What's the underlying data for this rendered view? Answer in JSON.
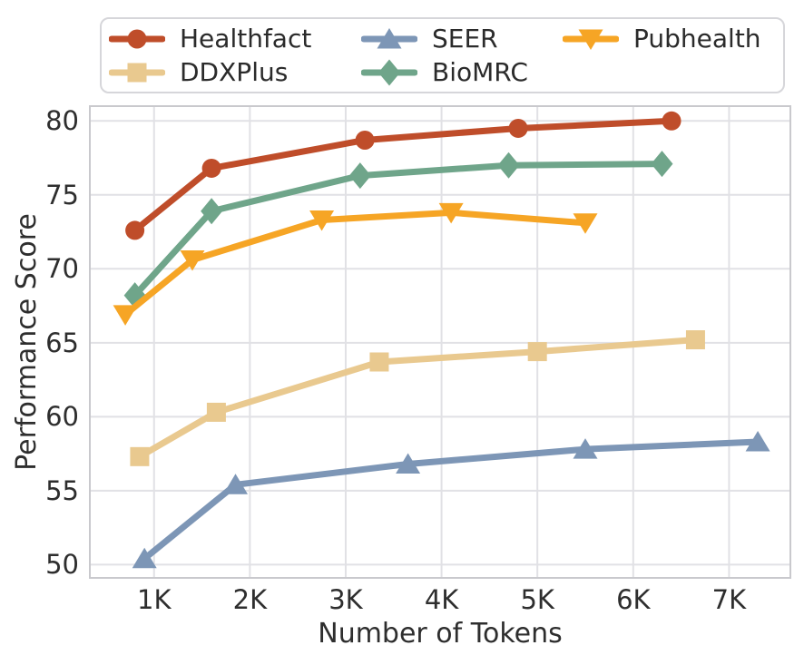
{
  "chart_data": {
    "type": "line",
    "title": "",
    "xlabel": "Number of Tokens",
    "ylabel": "Performance Score",
    "x_unit": "thousands of tokens",
    "xlim": [
      0.33,
      7.64
    ],
    "ylim": [
      49.1,
      81.0
    ],
    "grid": true,
    "legend_position": "top",
    "grid_color": "#e1e1e5",
    "spine_color": "#c9c9cd",
    "text_color": "#2e2e2e",
    "xticks": [
      {
        "value": 1,
        "label": "1K"
      },
      {
        "value": 2,
        "label": "2K"
      },
      {
        "value": 3,
        "label": "3K"
      },
      {
        "value": 4,
        "label": "4K"
      },
      {
        "value": 5,
        "label": "5K"
      },
      {
        "value": 6,
        "label": "6K"
      },
      {
        "value": 7,
        "label": "7K"
      }
    ],
    "yticks": [
      {
        "value": 50,
        "label": "50"
      },
      {
        "value": 55,
        "label": "55"
      },
      {
        "value": 60,
        "label": "60"
      },
      {
        "value": 65,
        "label": "65"
      },
      {
        "value": 70,
        "label": "70"
      },
      {
        "value": 75,
        "label": "75"
      },
      {
        "value": 80,
        "label": "80"
      }
    ],
    "series": [
      {
        "name": "Healthfact",
        "color": "#bf4d2a",
        "marker": "circle",
        "x": [
          0.8,
          1.6,
          3.2,
          4.8,
          6.4
        ],
        "y": [
          72.6,
          76.8,
          78.7,
          79.5,
          80.0
        ]
      },
      {
        "name": "DDXPlus",
        "color": "#e9c98f",
        "marker": "square",
        "x": [
          0.85,
          1.65,
          3.35,
          5.0,
          6.65
        ],
        "y": [
          57.3,
          60.3,
          63.7,
          64.4,
          65.2
        ]
      },
      {
        "name": "SEER",
        "color": "#7d96b6",
        "marker": "triangle-up",
        "x": [
          0.9,
          1.85,
          3.65,
          5.5,
          7.3
        ],
        "y": [
          50.4,
          55.4,
          56.8,
          57.8,
          58.3
        ]
      },
      {
        "name": "BioMRC",
        "color": "#6fa58a",
        "marker": "diamond",
        "x": [
          0.8,
          1.6,
          3.15,
          4.7,
          6.3
        ],
        "y": [
          68.2,
          73.9,
          76.3,
          77.0,
          77.1
        ]
      },
      {
        "name": "Pubhealth",
        "color": "#f6a525",
        "marker": "triangle-down",
        "x": [
          0.7,
          1.4,
          2.75,
          4.1,
          5.5
        ],
        "y": [
          66.9,
          70.6,
          73.3,
          73.8,
          73.1
        ]
      }
    ]
  }
}
